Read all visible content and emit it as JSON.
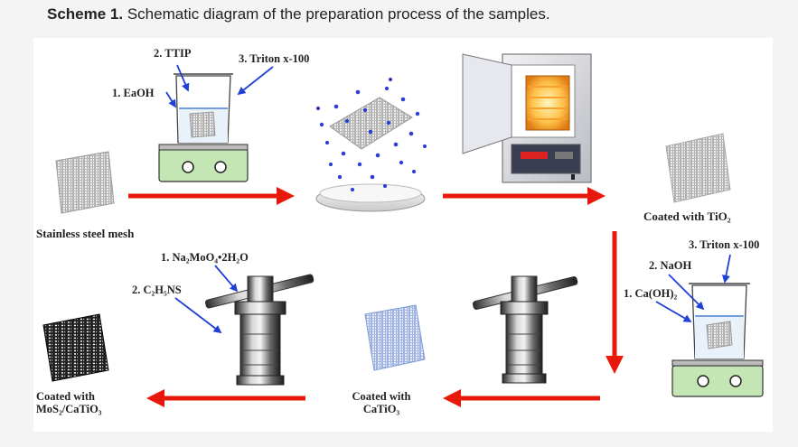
{
  "caption": {
    "prefix": "Scheme 1.",
    "text": " Schematic diagram of the preparation process of the samples."
  },
  "labels": {
    "eaoh": "1. EaOH",
    "ttip": "2. TTIP",
    "triton_top": "3. Triton x-100",
    "mesh": "Stainless steel mesh",
    "triton_right": "3. Triton x-100",
    "naoh": "2. NaOH",
    "caoh2": "1. Ca(OH)₂",
    "coated_tio2": "Coated with TiO₂",
    "na2moo4": "1. Na₂MoO₄•2H₂O",
    "c2h5ns": "2. C₂H₅NS",
    "coated_catio3": "Coated with CaTiO₃",
    "coated_mos2": "Coated with MoS₂/CaTiO₃"
  },
  "colors": {
    "arrow": "#e8180c",
    "pointer": "#1f3fd6",
    "stirrer": "#c4e6b4",
    "mesh_gray": "#a8a8a8",
    "mesh_blue": "#8fa8dc",
    "mesh_black": "#111111"
  }
}
